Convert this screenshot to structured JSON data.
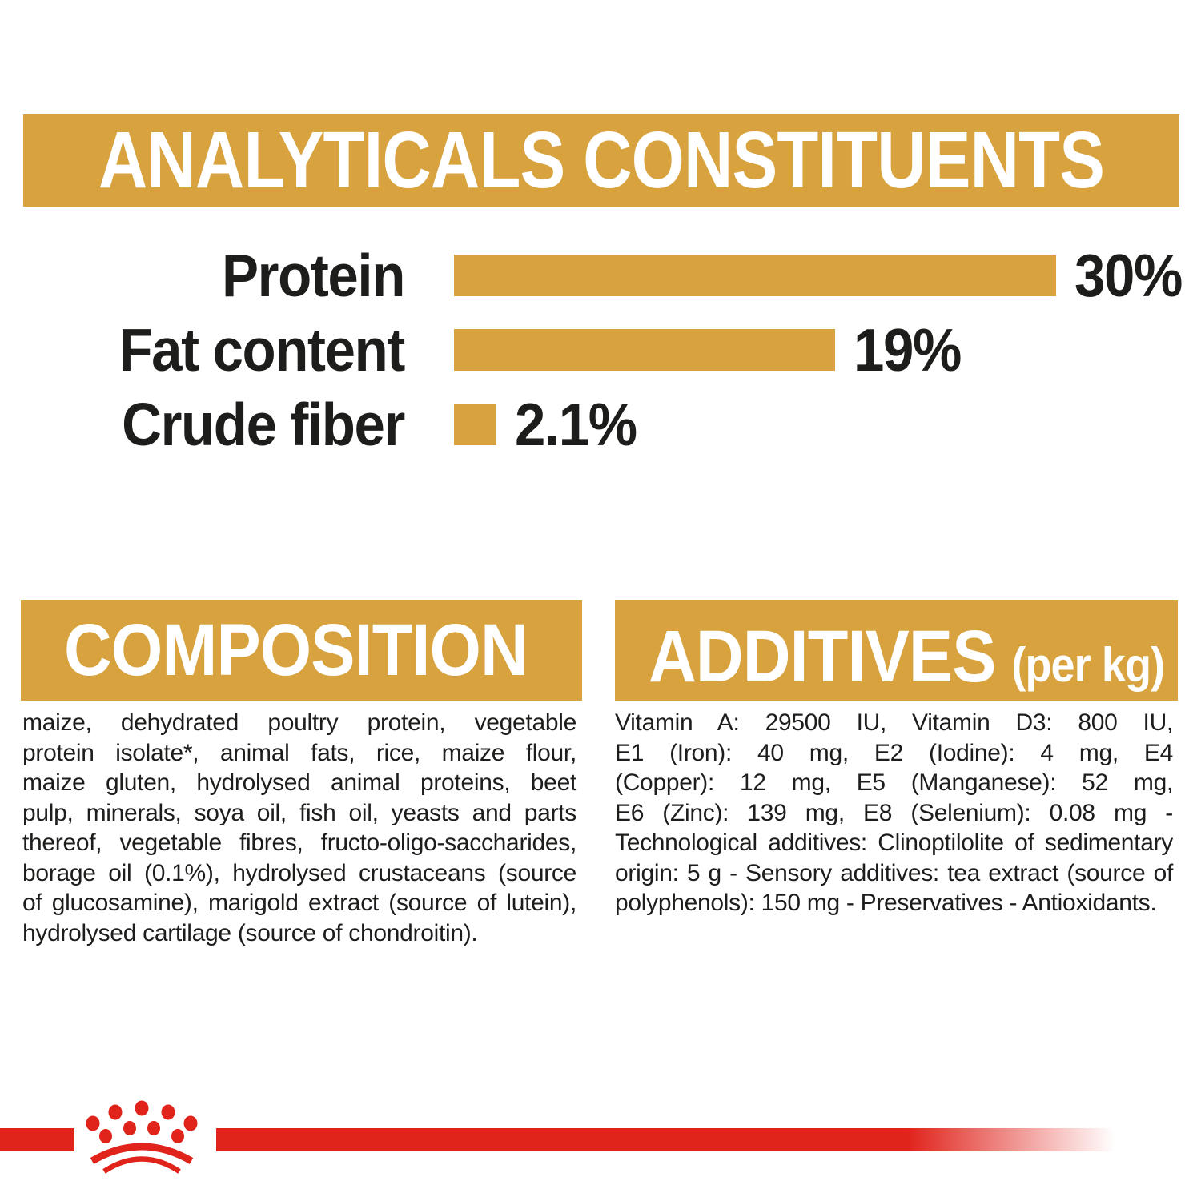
{
  "colors": {
    "gold": "#D8A33F",
    "red": "#E0241C",
    "text_black": "#1D1D1B",
    "white": "#FFFFFF"
  },
  "header": {
    "title": "ANALYTICALS CONSTITUENTS"
  },
  "chart_data": {
    "type": "bar",
    "orientation": "horizontal",
    "title": "ANALYTICALS CONSTITUENTS",
    "categories": [
      "Protein",
      "Fat content",
      "Crude fiber"
    ],
    "values": [
      30,
      19,
      2.1
    ],
    "value_labels": [
      "30%",
      "19%",
      "2.1%"
    ],
    "unit": "%",
    "xlim": [
      0,
      30
    ],
    "bar_color": "#D8A33F",
    "grid": false,
    "legend": false
  },
  "composition": {
    "title": "COMPOSITION",
    "lines": [
      "maize, dehydrated poultry protein, vegetable",
      "protein isolate*, animal fats, rice, maize flour,",
      "maize gluten, hydrolysed animal proteins, beet",
      "pulp, minerals, soya oil, fish oil, yeasts and parts",
      "thereof, vegetable fibres, fructo-oligo-saccharides,",
      "borage oil (0.1%), hydrolysed crustaceans (source",
      "of glucosamine), marigold extract (source of lutein),",
      "hydrolysed cartilage (source of chondroitin)."
    ]
  },
  "additives": {
    "title": "ADDITIVES",
    "title_suffix": "(per kg)",
    "lines": [
      "Vitamin A: 29500 IU, Vitamin D3: 800 IU,",
      "E1 (Iron): 40 mg, E2 (Iodine): 4 mg, E4",
      "(Copper): 12 mg, E5 (Manganese): 52 mg,",
      "E6 (Zinc): 139 mg, E8 (Selenium): 0.08 mg -",
      "Technological additives: Clinoptilolite of sedimentary",
      "origin: 5 g - Sensory additives: tea extract (source of",
      "polyphenols): 150 mg - Preservatives - Antioxidants."
    ]
  },
  "footer": {
    "brand_mark": "royal-canin-crown-logo"
  }
}
